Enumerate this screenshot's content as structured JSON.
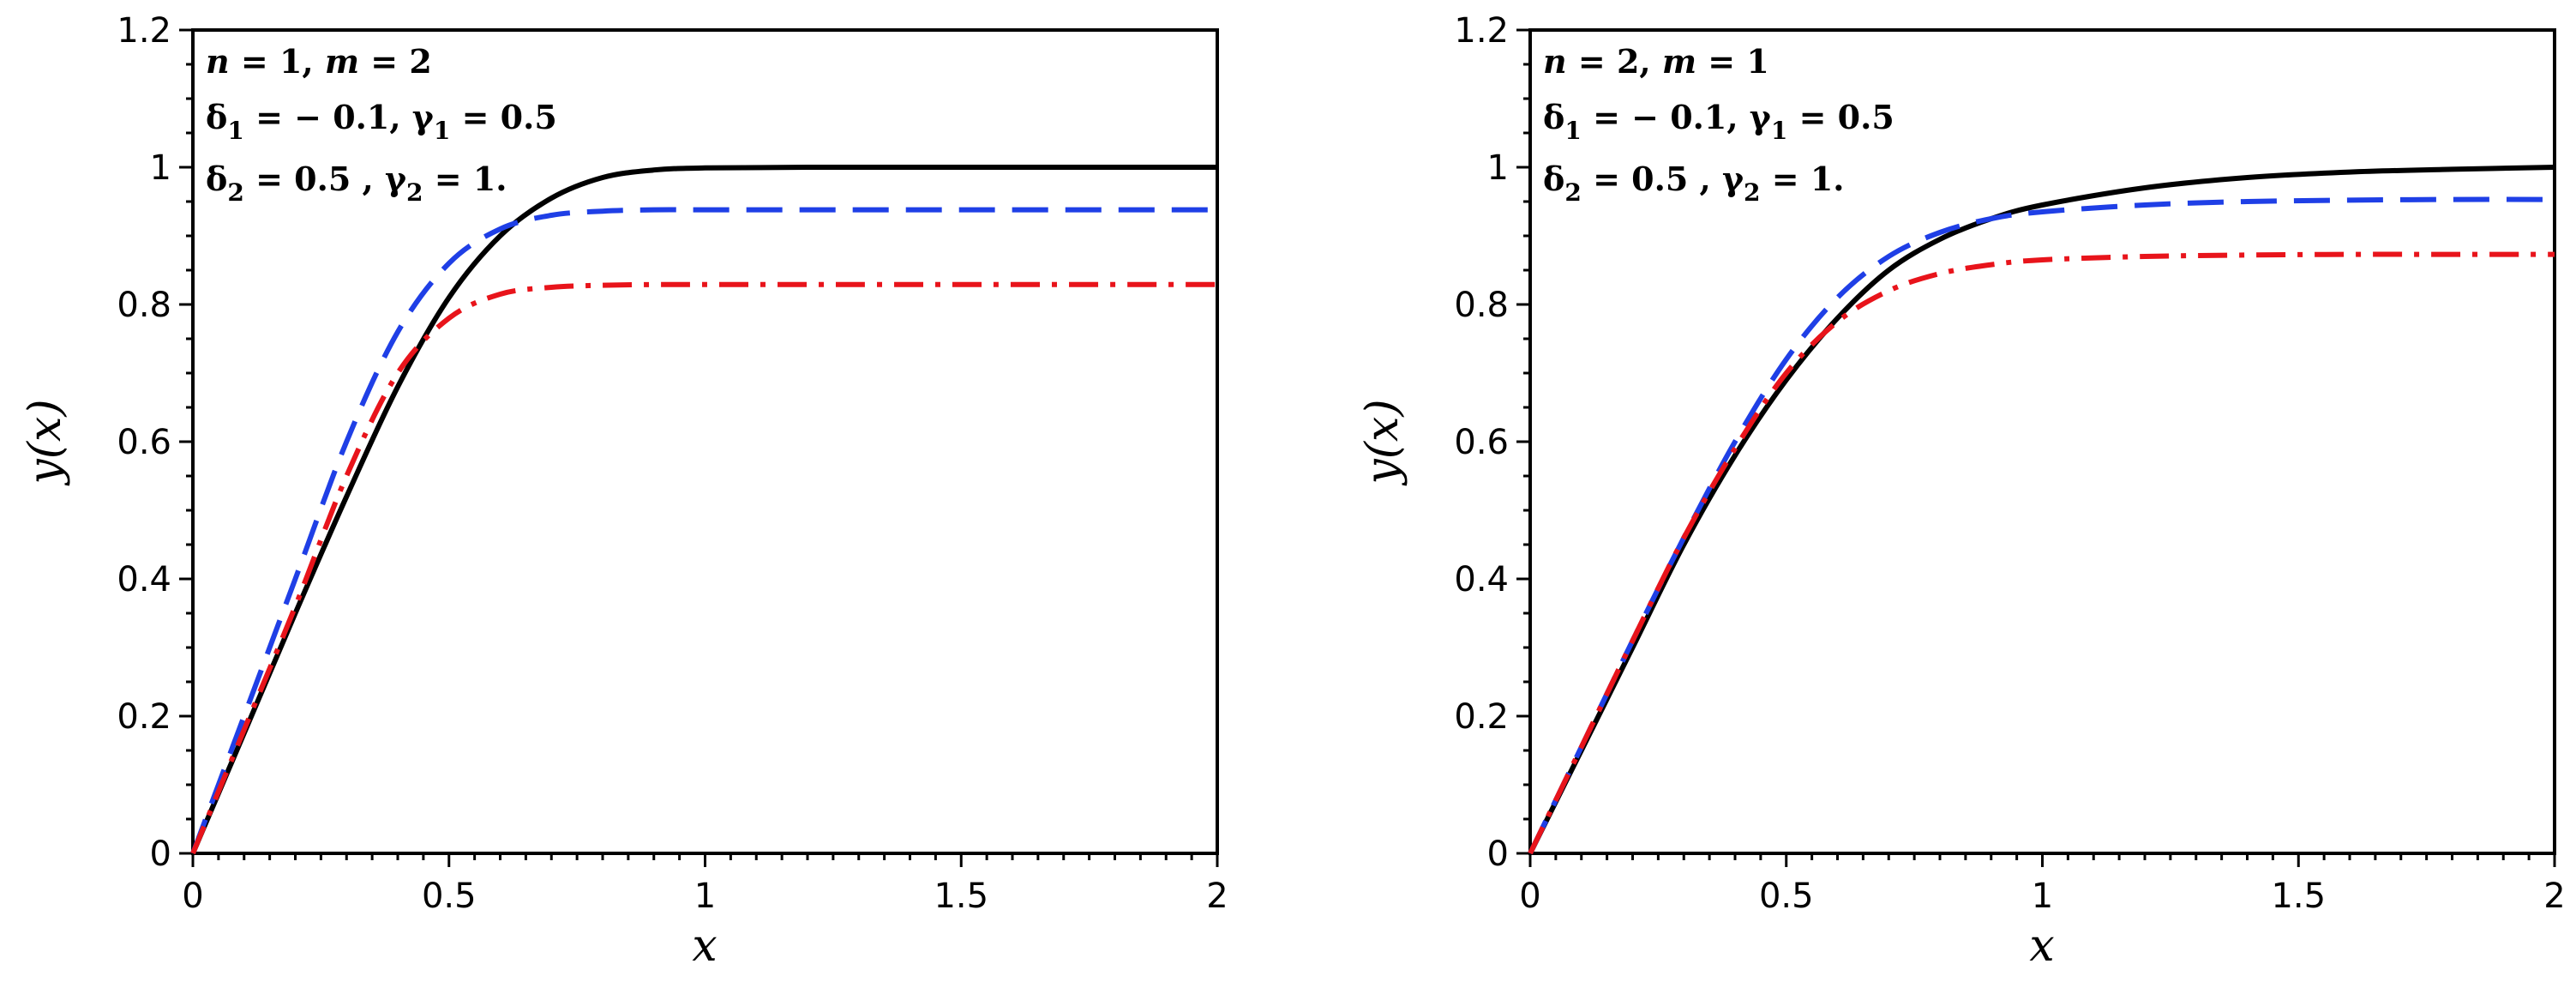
{
  "chart_data": [
    {
      "type": "line",
      "xlabel": "x",
      "ylabel": "y(x)",
      "xlim": [
        0,
        2
      ],
      "ylim": [
        0,
        1.2
      ],
      "xticks": [
        "0",
        "0.5",
        "1",
        "1.5",
        "2"
      ],
      "yticks": [
        "0",
        "0.2",
        "0.4",
        "0.6",
        "0.8",
        "1",
        "1.2"
      ],
      "grid": false,
      "annotations": {
        "line1": {
          "n": "n",
          "eq1": " = 1, ",
          "m": "m",
          "eq2": " = 2"
        },
        "line2": {
          "d": "δ",
          "dsub": "1",
          "deq": " = − 0.1, ",
          "g": "γ",
          "gsub": "1",
          "geq": " = 0.5"
        },
        "line3": {
          "d": "δ",
          "dsub": "2",
          "deq": " = 0.5 , ",
          "g": "γ",
          "gsub": "2",
          "geq": " = 1."
        }
      },
      "series": [
        {
          "color": "#000000",
          "style": "solid",
          "x": [
            0,
            0.1,
            0.2,
            0.3,
            0.4,
            0.5,
            0.6,
            0.7,
            0.8,
            0.9,
            1.0,
            1.2,
            1.5,
            2.0
          ],
          "y": [
            0,
            0.175,
            0.35,
            0.52,
            0.68,
            0.81,
            0.9,
            0.955,
            0.985,
            0.996,
            0.999,
            1.0,
            1.0,
            1.0
          ]
        },
        {
          "color": "#1f3fe6",
          "style": "dashed",
          "x": [
            0,
            0.1,
            0.2,
            0.3,
            0.4,
            0.5,
            0.6,
            0.7,
            0.8,
            0.9,
            1.0,
            1.2,
            1.5,
            2.0
          ],
          "y": [
            0,
            0.2,
            0.4,
            0.6,
            0.76,
            0.86,
            0.91,
            0.93,
            0.936,
            0.938,
            0.938,
            0.938,
            0.938,
            0.938
          ]
        },
        {
          "color": "#e8141b",
          "style": "dashdot",
          "x": [
            0,
            0.1,
            0.2,
            0.3,
            0.4,
            0.5,
            0.6,
            0.7,
            0.8,
            0.9,
            1.0,
            1.2,
            1.5,
            2.0
          ],
          "y": [
            0,
            0.18,
            0.36,
            0.55,
            0.7,
            0.78,
            0.815,
            0.825,
            0.828,
            0.829,
            0.829,
            0.829,
            0.829,
            0.829
          ]
        }
      ]
    },
    {
      "type": "line",
      "xlabel": "x",
      "ylabel": "y(x)",
      "xlim": [
        0,
        2
      ],
      "ylim": [
        0,
        1.2
      ],
      "xticks": [
        "0",
        "0.5",
        "1",
        "1.5",
        "2"
      ],
      "yticks": [
        "0",
        "0.2",
        "0.4",
        "0.6",
        "0.8",
        "1",
        "1.2"
      ],
      "grid": false,
      "annotations": {
        "line1": {
          "n": "n",
          "eq1": " = 2, ",
          "m": "m",
          "eq2": " = 1"
        },
        "line2": {
          "d": "δ",
          "dsub": "1",
          "deq": " = − 0.1, ",
          "g": "γ",
          "gsub": "1",
          "geq": " = 0.5"
        },
        "line3": {
          "d": "δ",
          "dsub": "2",
          "deq": " = 0.5 , ",
          "g": "γ",
          "gsub": "2",
          "geq": " = 1."
        }
      },
      "series": [
        {
          "color": "#000000",
          "style": "solid",
          "x": [
            0,
            0.1,
            0.2,
            0.3,
            0.4,
            0.5,
            0.6,
            0.7,
            0.8,
            0.9,
            1.0,
            1.2,
            1.4,
            1.6,
            1.8,
            2.0
          ],
          "y": [
            0,
            0.15,
            0.3,
            0.45,
            0.58,
            0.69,
            0.78,
            0.85,
            0.895,
            0.925,
            0.945,
            0.97,
            0.985,
            0.993,
            0.997,
            1.0
          ]
        },
        {
          "color": "#1f3fe6",
          "style": "dashed",
          "x": [
            0,
            0.1,
            0.2,
            0.3,
            0.4,
            0.5,
            0.6,
            0.7,
            0.8,
            0.9,
            1.0,
            1.2,
            1.4,
            1.6,
            1.8,
            2.0
          ],
          "y": [
            0,
            0.155,
            0.31,
            0.46,
            0.6,
            0.72,
            0.81,
            0.87,
            0.905,
            0.925,
            0.935,
            0.945,
            0.95,
            0.952,
            0.953,
            0.953
          ]
        },
        {
          "color": "#e8141b",
          "style": "dashdot",
          "x": [
            0,
            0.1,
            0.2,
            0.3,
            0.4,
            0.5,
            0.6,
            0.7,
            0.8,
            0.9,
            1.0,
            1.2,
            1.4,
            1.6,
            1.8,
            2.0
          ],
          "y": [
            0,
            0.155,
            0.31,
            0.46,
            0.59,
            0.7,
            0.775,
            0.82,
            0.845,
            0.858,
            0.865,
            0.87,
            0.872,
            0.873,
            0.873,
            0.873
          ]
        }
      ]
    }
  ]
}
